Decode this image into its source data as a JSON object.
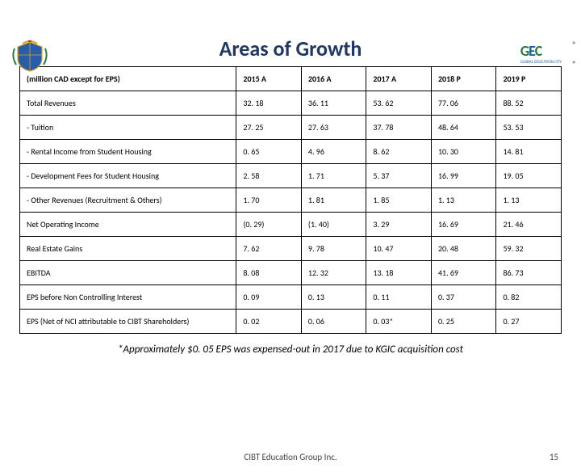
{
  "title": "Areas of Growth",
  "logo_right": {
    "g": "G",
    "e": "E",
    "c": "C",
    "sub": "GLOBAL EDUCATION CITY"
  },
  "reg": "®",
  "table": {
    "header_label": "(million CAD except for EPS)",
    "columns": [
      "2015 A",
      "2016 A",
      "2017 A",
      "2018 P",
      "2019 P"
    ],
    "rows": [
      {
        "label": "Total Revenues",
        "v": [
          "32. 18",
          "36. 11",
          "53. 62",
          "77. 06",
          "88. 52"
        ]
      },
      {
        "label": "- Tuition",
        "v": [
          "27. 25",
          "27. 63",
          "37. 78",
          "48. 64",
          "53. 53"
        ]
      },
      {
        "label": "- Rental Income from Student Housing",
        "v": [
          "0. 65",
          "4. 96",
          "8. 62",
          "10. 30",
          "14. 81"
        ]
      },
      {
        "label": "- Development Fees for Student Housing",
        "v": [
          "2. 58",
          "1. 71",
          "5. 37",
          "16. 99",
          "19. 05"
        ]
      },
      {
        "label": "- Other Revenues (Recruitment & Others)",
        "v": [
          "1. 70",
          "1. 81",
          "1. 85",
          "1. 13",
          "1. 13"
        ]
      },
      {
        "label": "Net Operating Income",
        "v": [
          "(0. 29)",
          "(1. 40)",
          "3. 29",
          "16. 69",
          "21. 46"
        ]
      },
      {
        "label": "Real Estate Gains",
        "v": [
          "7. 62",
          "9. 78",
          "10. 47",
          "20. 48",
          "59. 32"
        ]
      },
      {
        "label": "EBITDA",
        "v": [
          "8. 08",
          "12. 32",
          "13. 18",
          "41. 69",
          "86. 73"
        ]
      },
      {
        "label": "EPS before Non Controlling Interest",
        "v": [
          "0. 09",
          "0. 13",
          "0. 11",
          "0. 37",
          "0. 82"
        ]
      },
      {
        "label": "EPS (Net of NCI attributable to CIBT Shareholders)",
        "v": [
          "0. 02",
          "0. 06",
          "0. 03*",
          "0. 25",
          "0. 27"
        ]
      }
    ]
  },
  "footnote": "*Approximately $0. 05 EPS was expensed-out in 2017 due to KGIC acquisition cost",
  "footer_center": "CIBT Education Group Inc.",
  "footer_page": "15",
  "crest_colors": {
    "shield": "#2a5da8",
    "gold": "#d4a628",
    "green": "#2a7a3a",
    "red": "#b22222"
  }
}
